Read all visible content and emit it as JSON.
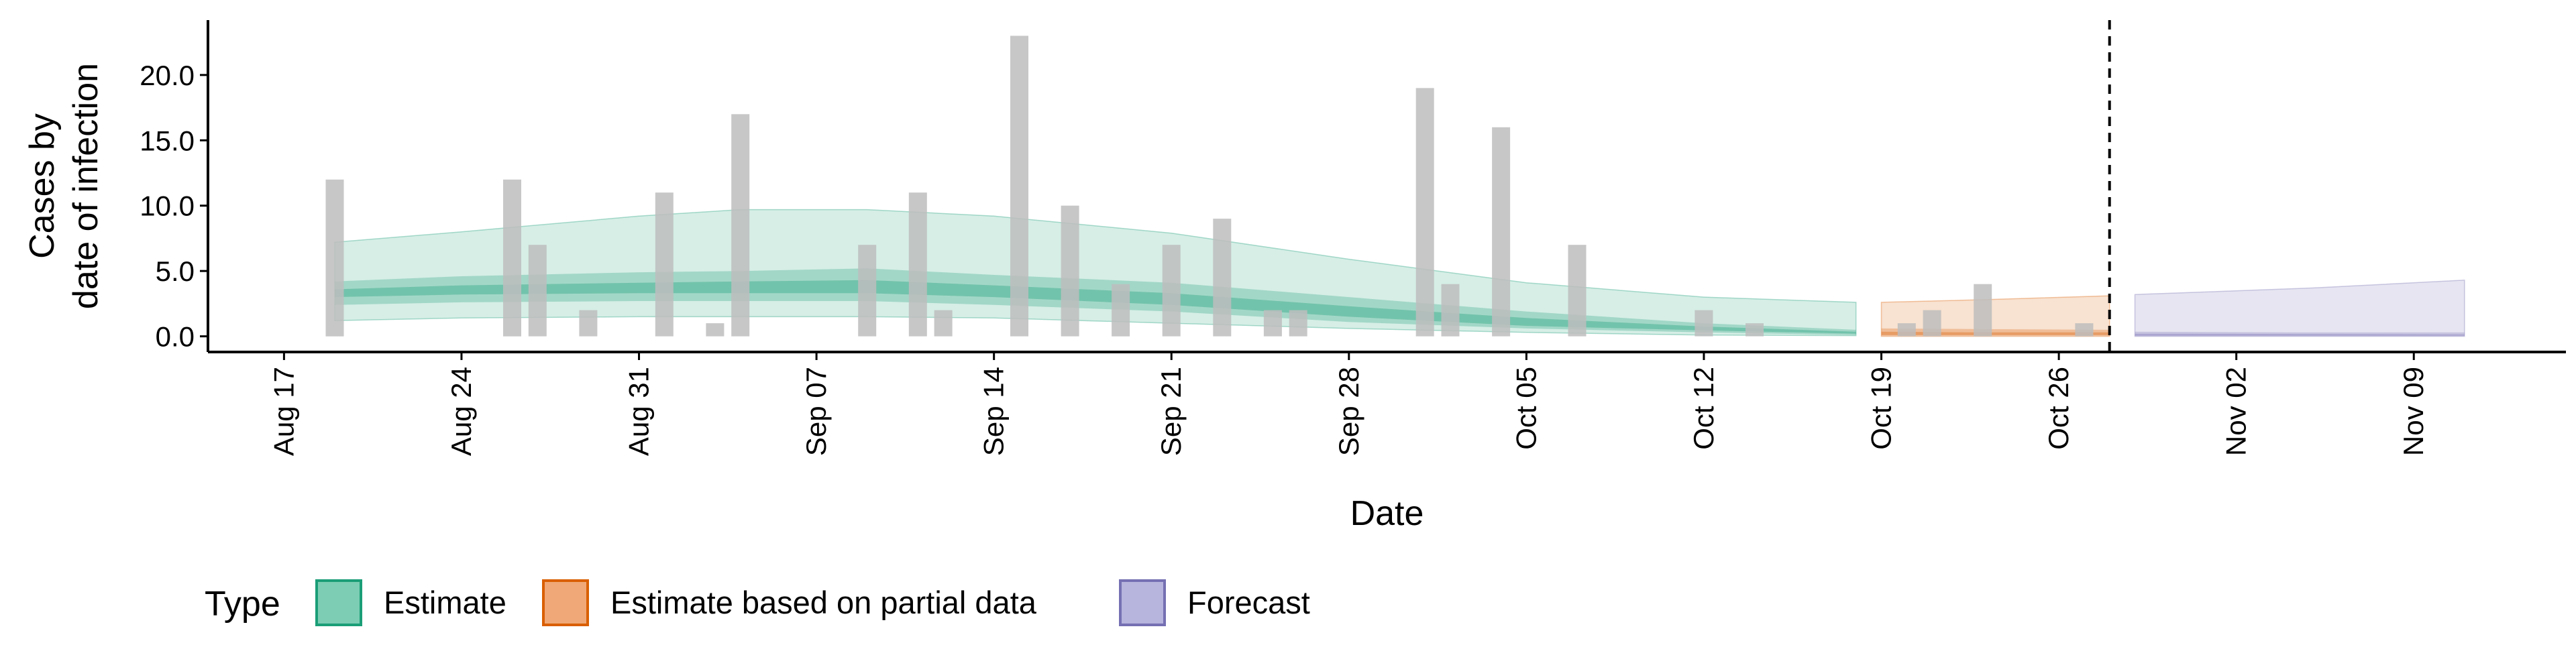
{
  "chart_data": {
    "type": "bar",
    "title": "",
    "xlabel": "Date",
    "ylabel_lines": [
      "Cases by",
      "date of infection"
    ],
    "ylim": [
      -1.2,
      24.2
    ],
    "yticks": [
      0,
      5,
      10,
      15,
      20
    ],
    "ytick_labels": [
      "0.0",
      "5.0",
      "10.0",
      "15.0",
      "20.0"
    ],
    "xlim_day": [
      -3,
      90
    ],
    "xtick_days": [
      0,
      7,
      14,
      21,
      28,
      35,
      42,
      49,
      56,
      63,
      70,
      77,
      84
    ],
    "xtick_labels": [
      "Aug 17",
      "Aug 24",
      "Aug 31",
      "Sep 07",
      "Sep 14",
      "Sep 21",
      "Sep 28",
      "Oct 05",
      "Oct 12",
      "Oct 19",
      "Oct 26",
      "Nov 02",
      "Nov 09"
    ],
    "forecast_line_day": 72,
    "colors": {
      "estimate": "#1b9e77",
      "estimate_fill": "#7ccdb3",
      "partial": "#d95f02",
      "partial_fill": "#f0a878",
      "forecast": "#7570b3",
      "forecast_fill": "#b7b4dd",
      "bars": "#bdbdbd"
    },
    "observed_cases": [
      {
        "date": "Aug 19",
        "value": 12
      },
      {
        "date": "Aug 26",
        "value": 12
      },
      {
        "date": "Aug 27",
        "value": 7
      },
      {
        "date": "Aug 29",
        "value": 2
      },
      {
        "date": "Sep 01",
        "value": 11
      },
      {
        "date": "Sep 03",
        "value": 1
      },
      {
        "date": "Sep 04",
        "value": 17
      },
      {
        "date": "Sep 09",
        "value": 7
      },
      {
        "date": "Sep 11",
        "value": 11
      },
      {
        "date": "Sep 12",
        "value": 2
      },
      {
        "date": "Sep 15",
        "value": 23
      },
      {
        "date": "Sep 17",
        "value": 10
      },
      {
        "date": "Sep 19",
        "value": 4
      },
      {
        "date": "Sep 21",
        "value": 7
      },
      {
        "date": "Sep 23",
        "value": 9
      },
      {
        "date": "Sep 25",
        "value": 2
      },
      {
        "date": "Sep 26",
        "value": 2
      },
      {
        "date": "Oct 01",
        "value": 19
      },
      {
        "date": "Oct 02",
        "value": 4
      },
      {
        "date": "Oct 04",
        "value": 16
      },
      {
        "date": "Oct 07",
        "value": 7
      },
      {
        "date": "Oct 12",
        "value": 2
      },
      {
        "date": "Oct 14",
        "value": 1
      },
      {
        "date": "Oct 20",
        "value": 1
      },
      {
        "date": "Oct 21",
        "value": 2
      },
      {
        "date": "Oct 23",
        "value": 4
      },
      {
        "date": "Oct 27",
        "value": 1
      }
    ],
    "series": [
      {
        "type_key": "estimate",
        "name": "Estimate",
        "points": [
          {
            "date": "Aug 19",
            "lo90": 1.2,
            "hi90": 7.2,
            "lo50": 2.4,
            "hi50": 4.2,
            "lo20": 3.0,
            "hi20": 3.6
          },
          {
            "date": "Aug 24",
            "lo90": 1.4,
            "hi90": 8.0,
            "lo50": 2.6,
            "hi50": 4.6,
            "lo20": 3.2,
            "hi20": 3.9
          },
          {
            "date": "Aug 31",
            "lo90": 1.5,
            "hi90": 9.2,
            "lo50": 2.7,
            "hi50": 4.9,
            "lo20": 3.3,
            "hi20": 4.1
          },
          {
            "date": "Sep 04",
            "lo90": 1.5,
            "hi90": 9.7,
            "lo50": 2.7,
            "hi50": 5.0,
            "lo20": 3.3,
            "hi20": 4.2
          },
          {
            "date": "Sep 09",
            "lo90": 1.5,
            "hi90": 9.7,
            "lo50": 2.7,
            "hi50": 5.2,
            "lo20": 3.3,
            "hi20": 4.3
          },
          {
            "date": "Sep 14",
            "lo90": 1.4,
            "hi90": 9.2,
            "lo50": 2.4,
            "hi50": 4.7,
            "lo20": 3.0,
            "hi20": 3.9
          },
          {
            "date": "Sep 21",
            "lo90": 1.0,
            "hi90": 7.9,
            "lo50": 1.9,
            "hi50": 4.1,
            "lo20": 2.4,
            "hi20": 3.3
          },
          {
            "date": "Sep 28",
            "lo90": 0.6,
            "hi90": 5.9,
            "lo50": 1.1,
            "hi50": 3.0,
            "lo20": 1.5,
            "hi20": 2.3
          },
          {
            "date": "Oct 05",
            "lo90": 0.3,
            "hi90": 4.1,
            "lo50": 0.6,
            "hi50": 1.9,
            "lo20": 0.8,
            "hi20": 1.4
          },
          {
            "date": "Oct 12",
            "lo90": 0.1,
            "hi90": 3.0,
            "lo50": 0.3,
            "hi50": 1.0,
            "lo20": 0.45,
            "hi20": 0.75
          },
          {
            "date": "Oct 18",
            "lo90": 0.05,
            "hi90": 2.6,
            "lo50": 0.1,
            "hi50": 0.5,
            "lo20": 0.2,
            "hi20": 0.35
          }
        ]
      },
      {
        "type_key": "partial",
        "name": "Estimate based on partial data",
        "points": [
          {
            "date": "Oct 19",
            "lo90": 0.0,
            "hi90": 2.6,
            "lo50": 0.05,
            "hi50": 0.6,
            "lo20": 0.1,
            "hi20": 0.35
          },
          {
            "date": "Oct 23",
            "lo90": 0.0,
            "hi90": 2.8,
            "lo50": 0.05,
            "hi50": 0.55,
            "lo20": 0.1,
            "hi20": 0.3
          },
          {
            "date": "Oct 28",
            "lo90": 0.0,
            "hi90": 3.1,
            "lo50": 0.05,
            "hi50": 0.5,
            "lo20": 0.1,
            "hi20": 0.3
          }
        ]
      },
      {
        "type_key": "forecast",
        "name": "Forecast",
        "points": [
          {
            "date": "Oct 29",
            "lo90": 0.0,
            "hi90": 3.2,
            "lo50": 0.02,
            "hi50": 0.35,
            "lo20": 0.05,
            "hi20": 0.2
          },
          {
            "date": "Nov 05",
            "lo90": 0.0,
            "hi90": 3.7,
            "lo50": 0.02,
            "hi50": 0.3,
            "lo20": 0.05,
            "hi20": 0.18
          },
          {
            "date": "Nov 11",
            "lo90": 0.0,
            "hi90": 4.3,
            "lo50": 0.02,
            "hi50": 0.3,
            "lo20": 0.05,
            "hi20": 0.15
          }
        ]
      }
    ],
    "legend": {
      "position": "bottom-left",
      "title": "Type",
      "items": [
        {
          "key": "estimate",
          "label": "Estimate"
        },
        {
          "key": "partial",
          "label": "Estimate based on partial data"
        },
        {
          "key": "forecast",
          "label": "Forecast"
        }
      ]
    }
  }
}
